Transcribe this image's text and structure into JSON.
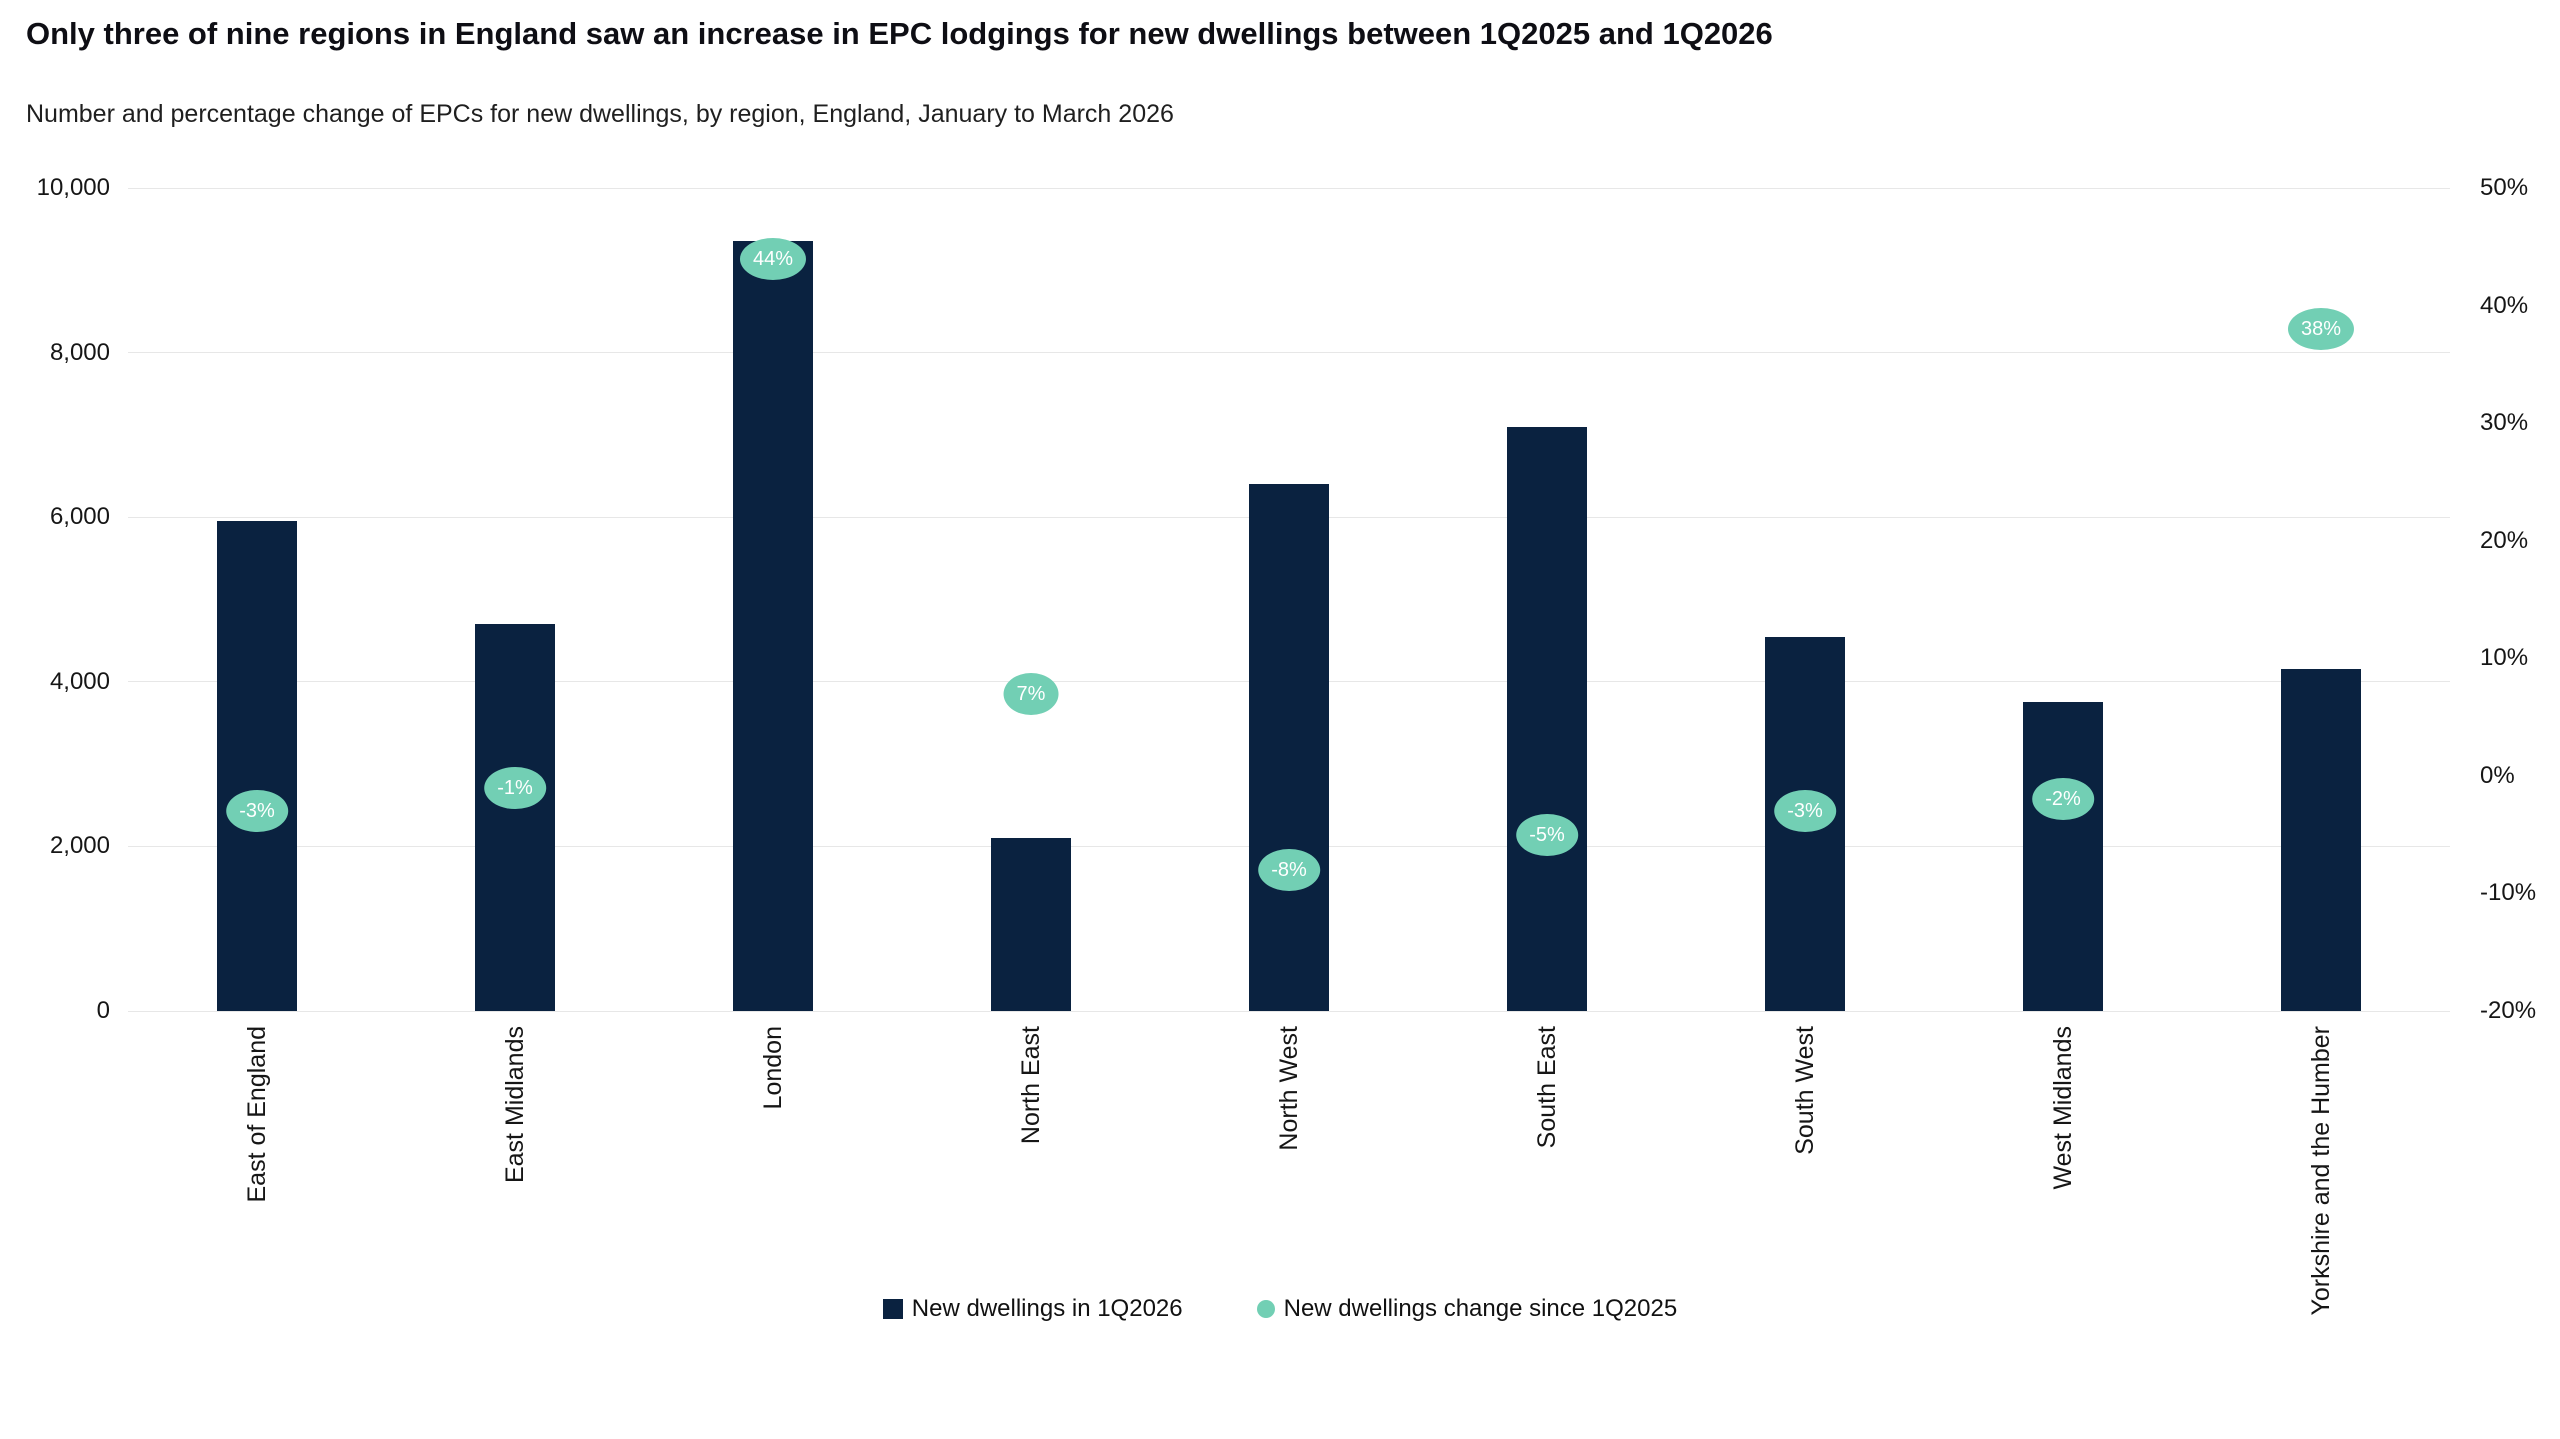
{
  "header": {
    "title": "Only three of nine regions in England saw an increase in EPC lodgings for new dwellings between 1Q2025 and 1Q2026",
    "subtitle": "Number and percentage change of EPCs for new dwellings, by region, England, January to March 2026"
  },
  "chart_data": {
    "type": "bar",
    "title": "Only three of nine regions in England saw an increase in EPC lodgings for new dwellings between 1Q2025 and 1Q2026",
    "subtitle": "Number and percentage change of EPCs for new dwellings, by region, England, January to March 2026",
    "categories": [
      "East of England",
      "East Midlands",
      "London",
      "North East",
      "North West",
      "South East",
      "South West",
      "West Midlands",
      "Yorkshire and the Humber"
    ],
    "series": [
      {
        "name": "New dwellings in 1Q2026",
        "type": "column",
        "axis": "left",
        "values": [
          5950,
          4700,
          9350,
          2100,
          6400,
          7100,
          4550,
          3750,
          4150
        ]
      },
      {
        "name": "New dwellings change since 1Q2025",
        "type": "point",
        "axis": "right",
        "values": [
          -3,
          -1,
          44,
          7,
          -8,
          -5,
          -3,
          -2,
          38
        ],
        "labels": [
          "-3%",
          "-1%",
          "44%",
          "7%",
          "-8%",
          "-5%",
          "-3%",
          "-2%",
          "38%"
        ]
      }
    ],
    "left_axis": {
      "ticks": [
        "10,000",
        "8,000",
        "6,000",
        "4,000",
        "2,000",
        "0"
      ],
      "values": [
        10000,
        8000,
        6000,
        4000,
        2000,
        0
      ],
      "min": 0,
      "max": 10000
    },
    "right_axis": {
      "ticks": [
        "50%",
        "40%",
        "30%",
        "20%",
        "10%",
        "0%",
        "-10%",
        "-20%"
      ],
      "values": [
        50,
        40,
        30,
        20,
        10,
        0,
        -10,
        -20
      ],
      "min": -20,
      "max": 50
    },
    "legend": [
      {
        "label": "New dwellings in 1Q2026",
        "shape": "square",
        "color": "#0a2240"
      },
      {
        "label": "New dwellings change since 1Q2025",
        "shape": "circle",
        "color": "#72cfb4"
      }
    ],
    "legend_position": "bottom-center",
    "grid": true,
    "colors": {
      "bar": "#0a2240",
      "marker": "#72cfb4",
      "marker_text": "#ffffff",
      "gridline": "#e7e7e7",
      "axis_text": "#161616",
      "title_text": "#0e0e14"
    }
  }
}
